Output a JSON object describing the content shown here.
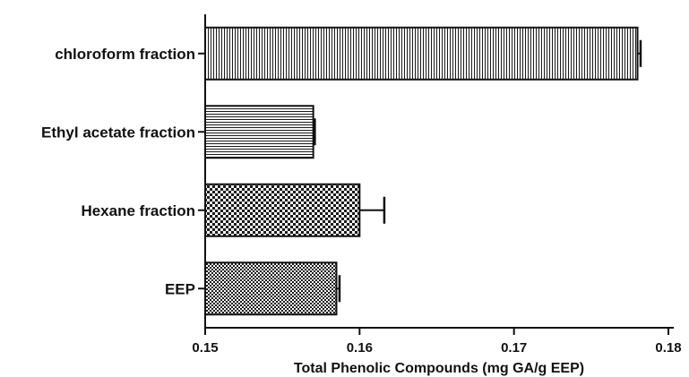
{
  "chart_data": {
    "type": "bar",
    "orientation": "horizontal",
    "categories": [
      "chloroform fraction",
      "Ethyl acetate fraction",
      "Hexane fraction",
      "EEP"
    ],
    "values": [
      0.178,
      0.157,
      0.16,
      0.1585
    ],
    "error_bars": [
      0.0002,
      0.0001,
      0.0016,
      0.0002
    ],
    "patterns": [
      "vertical-lines",
      "horizontal-lines",
      "checkerboard",
      "fine-checker"
    ],
    "xlabel": "Total Phenolic Compounds (mg GA/g EEP)",
    "ylabel": "",
    "xlim": [
      0.15,
      0.18
    ],
    "xticks": [
      "0.15",
      "0.16",
      "0.17",
      "0.18"
    ],
    "grid": false,
    "legend": "none",
    "colors": {
      "bar_stroke": "#111111",
      "bar_pattern": "#1a1a1a",
      "bar_fill": "#ffffff"
    }
  }
}
